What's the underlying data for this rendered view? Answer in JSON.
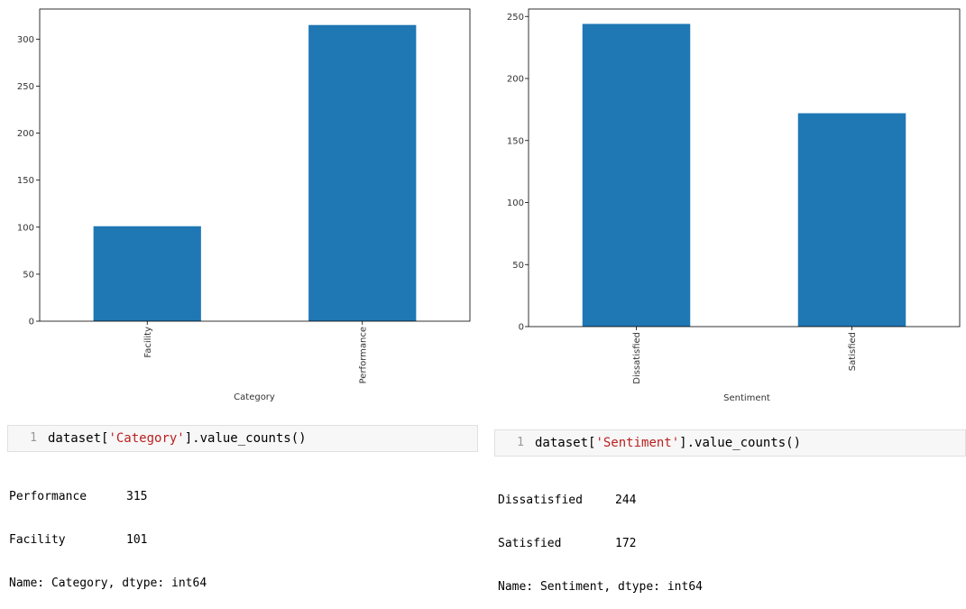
{
  "chart_data": [
    {
      "type": "bar",
      "categories": [
        "Facility",
        "Performance"
      ],
      "values": [
        101,
        315
      ],
      "xlabel": "Category",
      "ylabel": "",
      "ylim": [
        0,
        332
      ],
      "yticks": [
        0,
        50,
        100,
        150,
        200,
        250,
        300
      ],
      "bar_color": "#1f77b4"
    },
    {
      "type": "bar",
      "categories": [
        "Dissatisfied",
        "Satisfied"
      ],
      "values": [
        244,
        172
      ],
      "xlabel": "Sentiment",
      "ylabel": "",
      "ylim": [
        0,
        256
      ],
      "yticks": [
        0,
        50,
        100,
        150,
        200,
        250
      ],
      "bar_color": "#1f77b4"
    }
  ],
  "cells": [
    {
      "line_number": "1",
      "code_prefix": "dataset[",
      "code_string": "'Category'",
      "code_suffix": "].value_counts()",
      "output_rows": [
        {
          "key": "Performance",
          "value": "315"
        },
        {
          "key": "Facility",
          "value": "101"
        }
      ],
      "output_footer": "Name: Category, dtype: int64"
    },
    {
      "line_number": "1",
      "code_prefix": "dataset[",
      "code_string": "'Sentiment'",
      "code_suffix": "].value_counts()",
      "output_rows": [
        {
          "key": "Dissatisfied",
          "value": "244"
        },
        {
          "key": "Satisfied",
          "value": "172"
        }
      ],
      "output_footer": "Name: Sentiment, dtype: int64"
    }
  ]
}
